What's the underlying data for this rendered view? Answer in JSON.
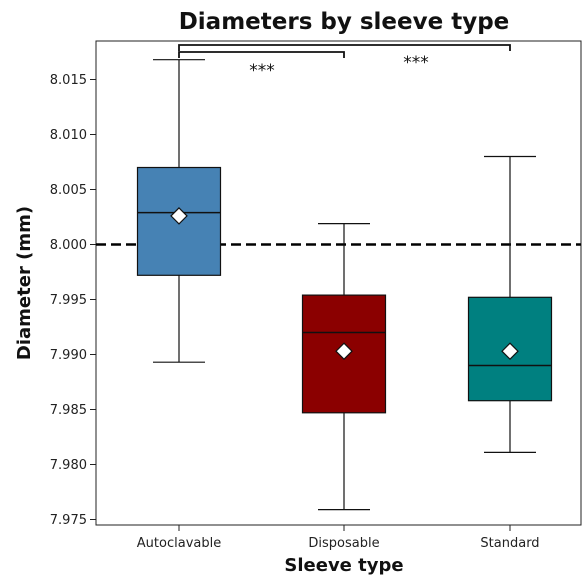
{
  "chart_data": {
    "type": "box",
    "title": "Diameters by sleeve type",
    "xlabel": "Sleeve type",
    "ylabel": "Diameter (mm)",
    "ylim": [
      7.9745,
      8.0185
    ],
    "yticks": [
      "7.975",
      "7.980",
      "7.985",
      "7.990",
      "7.995",
      "8.000",
      "8.005",
      "8.010",
      "8.015"
    ],
    "reference_line": {
      "value": 8.0,
      "style": "dashed",
      "color": "#000000"
    },
    "categories": [
      "Autoclavable",
      "Disposable",
      "Standard"
    ],
    "boxes": [
      {
        "name": "Autoclavable",
        "whisker_low": 7.9893,
        "q1": 7.9972,
        "median": 8.0029,
        "q3": 8.007,
        "whisker_high": 8.0168,
        "mean": 8.0026,
        "color": "#4682B4"
      },
      {
        "name": "Disposable",
        "whisker_low": 7.9759,
        "q1": 7.9847,
        "median": 7.992,
        "q3": 7.9954,
        "whisker_high": 8.0019,
        "mean": 7.9903,
        "color": "#8B0000"
      },
      {
        "name": "Standard",
        "whisker_low": 7.9811,
        "q1": 7.9858,
        "median": 7.989,
        "q3": 7.9952,
        "whisker_high": 8.008,
        "mean": 7.9903,
        "color": "#008080"
      }
    ],
    "significance": [
      {
        "from": 0,
        "to": 1,
        "label": "***"
      },
      {
        "from": 0,
        "to": 2,
        "label": "***"
      }
    ],
    "grid": false,
    "legend": "none"
  }
}
